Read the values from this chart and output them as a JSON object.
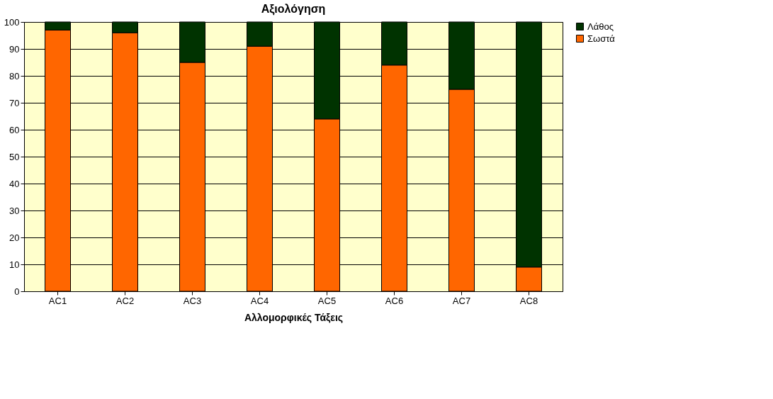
{
  "chart_data": {
    "type": "bar",
    "title": "Αξιολόγηση",
    "xlabel": "Αλλομορφικές Τάξεις",
    "categories": [
      "AC1",
      "AC2",
      "AC3",
      "AC4",
      "AC5",
      "AC6",
      "AC7",
      "AC8"
    ],
    "stacked": true,
    "series": [
      {
        "name": "Σωστά",
        "color": "#ff6600",
        "values": [
          97,
          96,
          85,
          91,
          64,
          84,
          75,
          9
        ]
      },
      {
        "name": "Λάθος",
        "color": "#003300",
        "values": [
          3,
          4,
          15,
          9,
          36,
          16,
          25,
          91
        ]
      }
    ],
    "ylim": [
      0,
      100
    ],
    "yticks": [
      0,
      10,
      20,
      30,
      40,
      50,
      60,
      70,
      80,
      90,
      100
    ],
    "grid": "y",
    "legend": "right"
  }
}
